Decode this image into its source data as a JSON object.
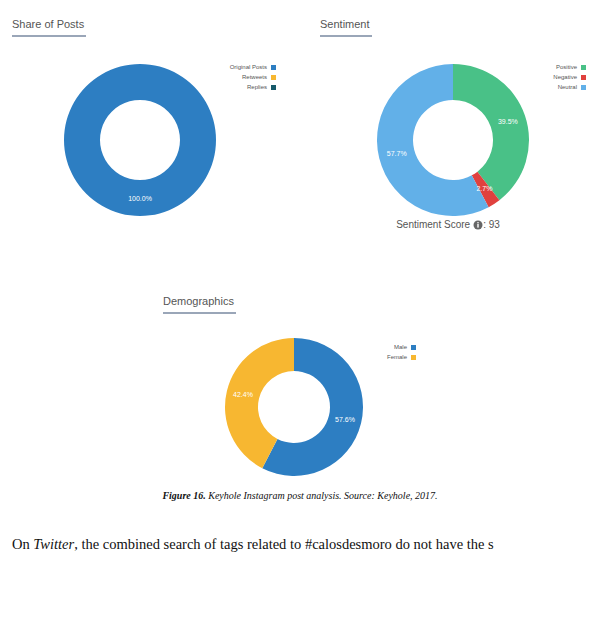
{
  "chart_data": [
    {
      "type": "pie",
      "title": "Share of Posts",
      "categories": [
        "Original Posts",
        "Retweets",
        "Replies"
      ],
      "values": [
        100,
        0,
        0
      ],
      "value_labels": [
        "100.0%",
        null,
        null
      ],
      "colors": [
        "#2d7ec2",
        "#f7b731",
        "#175a6a"
      ],
      "legend": "right",
      "data_labels": true
    },
    {
      "type": "pie",
      "title": "Sentiment",
      "categories": [
        "Positive",
        "Negative",
        "Neutral"
      ],
      "values": [
        39.5,
        2.7,
        57.7
      ],
      "value_labels": [
        "39.5%",
        "2.7%",
        "57.7%"
      ],
      "colors": [
        "#49c187",
        "#e0413e",
        "#62b0e8"
      ],
      "legend": "right",
      "data_labels": true,
      "annotation": {
        "label": "Sentiment Score",
        "value": 93
      }
    },
    {
      "type": "pie",
      "title": "Demographics",
      "categories": [
        "Male",
        "Female"
      ],
      "values": [
        57.6,
        42.4
      ],
      "value_labels": [
        "57.6%",
        "42.4%"
      ],
      "colors": [
        "#2d7ec2",
        "#f7b731"
      ],
      "legend": "right",
      "data_labels": true
    }
  ],
  "caption": {
    "label": "Figure 16.",
    "text": "Keyhole Instagram post analysis. Source: Keyhole, 2017."
  },
  "text": [
    {
      "text": "On "
    },
    {
      "text": "Twitter",
      "italic": true
    },
    {
      "text": ", the combined search of tags related to #calosdesmoro do not have the s"
    }
  ]
}
